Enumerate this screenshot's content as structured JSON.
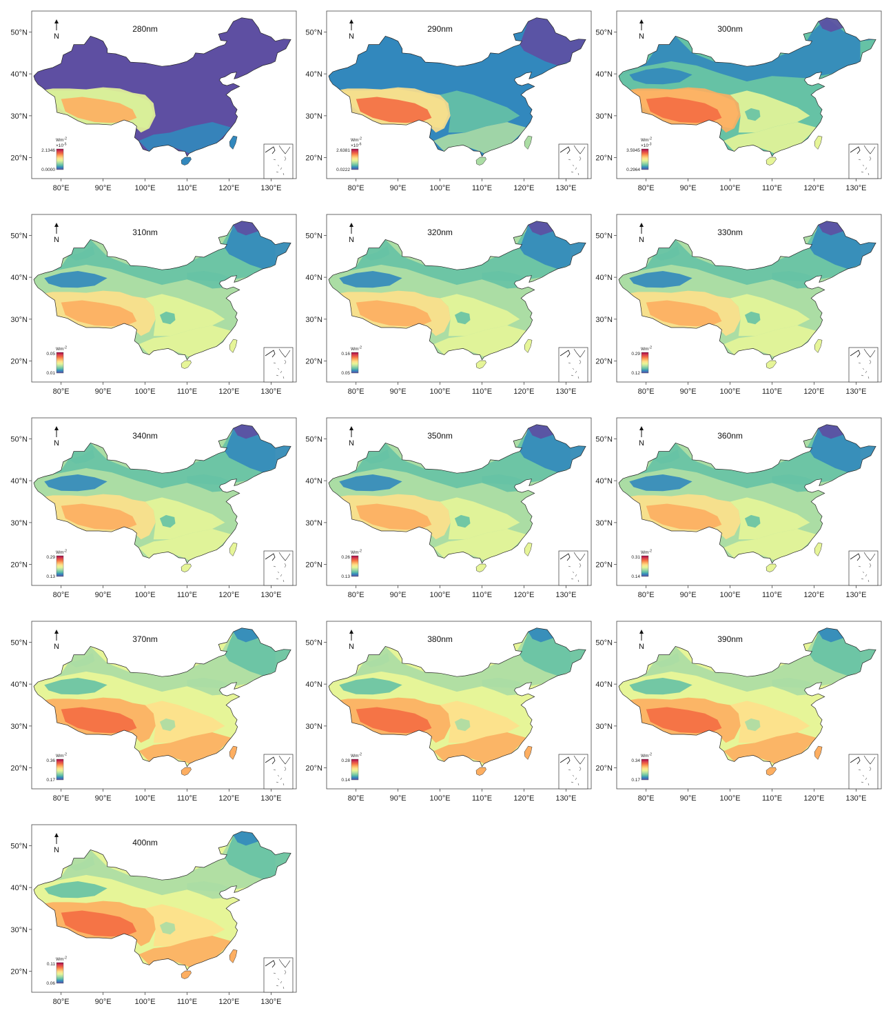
{
  "chart_data": {
    "type": "map-grid",
    "x_tick_labels": [
      "80°E",
      "90°E",
      "100°E",
      "110°E",
      "120°E",
      "130°E"
    ],
    "y_tick_labels": [
      "50°N",
      "40°N",
      "30°N",
      "20°N"
    ],
    "north_label": "N",
    "colormap": [
      "#5e4fa2",
      "#3288bd",
      "#66c2a5",
      "#abdda4",
      "#e6f598",
      "#fee08b",
      "#fdae61",
      "#f46d43",
      "#d53e4f",
      "#9e0142"
    ],
    "panels": [
      {
        "title": "280nm",
        "unit": "Wm",
        "exp": "-2",
        "scale": "×10",
        "scale_exp": "-5",
        "max": "2.1346",
        "min": "0.0000",
        "style": "low"
      },
      {
        "title": "290nm",
        "unit": "Wm",
        "exp": "-2",
        "scale": "×10",
        "scale_exp": "-6",
        "max": "2.6381",
        "min": "0.0222",
        "style": "low2"
      },
      {
        "title": "300nm",
        "unit": "Wm",
        "exp": "-2",
        "scale": "×10",
        "scale_exp": "-3",
        "max": "3.5945",
        "min": "0.2964",
        "style": "mid"
      },
      {
        "title": "310nm",
        "unit": "Wm",
        "exp": "-2",
        "scale": "",
        "scale_exp": "",
        "max": "0.05",
        "min": "0.01",
        "style": "std"
      },
      {
        "title": "320nm",
        "unit": "Wm",
        "exp": "-2",
        "scale": "",
        "scale_exp": "",
        "max": "0.16",
        "min": "0.05",
        "style": "std"
      },
      {
        "title": "330nm",
        "unit": "Wm",
        "exp": "-2",
        "scale": "",
        "scale_exp": "",
        "max": "0.29",
        "min": "0.12",
        "style": "std"
      },
      {
        "title": "340nm",
        "unit": "Wm",
        "exp": "-2",
        "scale": "",
        "scale_exp": "",
        "max": "0.29",
        "min": "0.13",
        "style": "std"
      },
      {
        "title": "350nm",
        "unit": "Wm",
        "exp": "-2",
        "scale": "",
        "scale_exp": "",
        "max": "0.26",
        "min": "0.13",
        "style": "std"
      },
      {
        "title": "360nm",
        "unit": "Wm",
        "exp": "-2",
        "scale": "",
        "scale_exp": "",
        "max": "0.31",
        "min": "0.14",
        "style": "std"
      },
      {
        "title": "370nm",
        "unit": "Wm",
        "exp": "-2",
        "scale": "",
        "scale_exp": "",
        "max": "0.36",
        "min": "0.17",
        "style": "warm"
      },
      {
        "title": "380nm",
        "unit": "Wm",
        "exp": "-2",
        "scale": "",
        "scale_exp": "",
        "max": "0.28",
        "min": "0.14",
        "style": "warm"
      },
      {
        "title": "390nm",
        "unit": "Wm",
        "exp": "-2",
        "scale": "",
        "scale_exp": "",
        "max": "0.34",
        "min": "0.17",
        "style": "warm"
      },
      {
        "title": "400nm",
        "unit": "Wm",
        "exp": "-2",
        "scale": "",
        "scale_exp": "",
        "max": "0.11",
        "min": "0.06",
        "style": "warm"
      }
    ]
  }
}
